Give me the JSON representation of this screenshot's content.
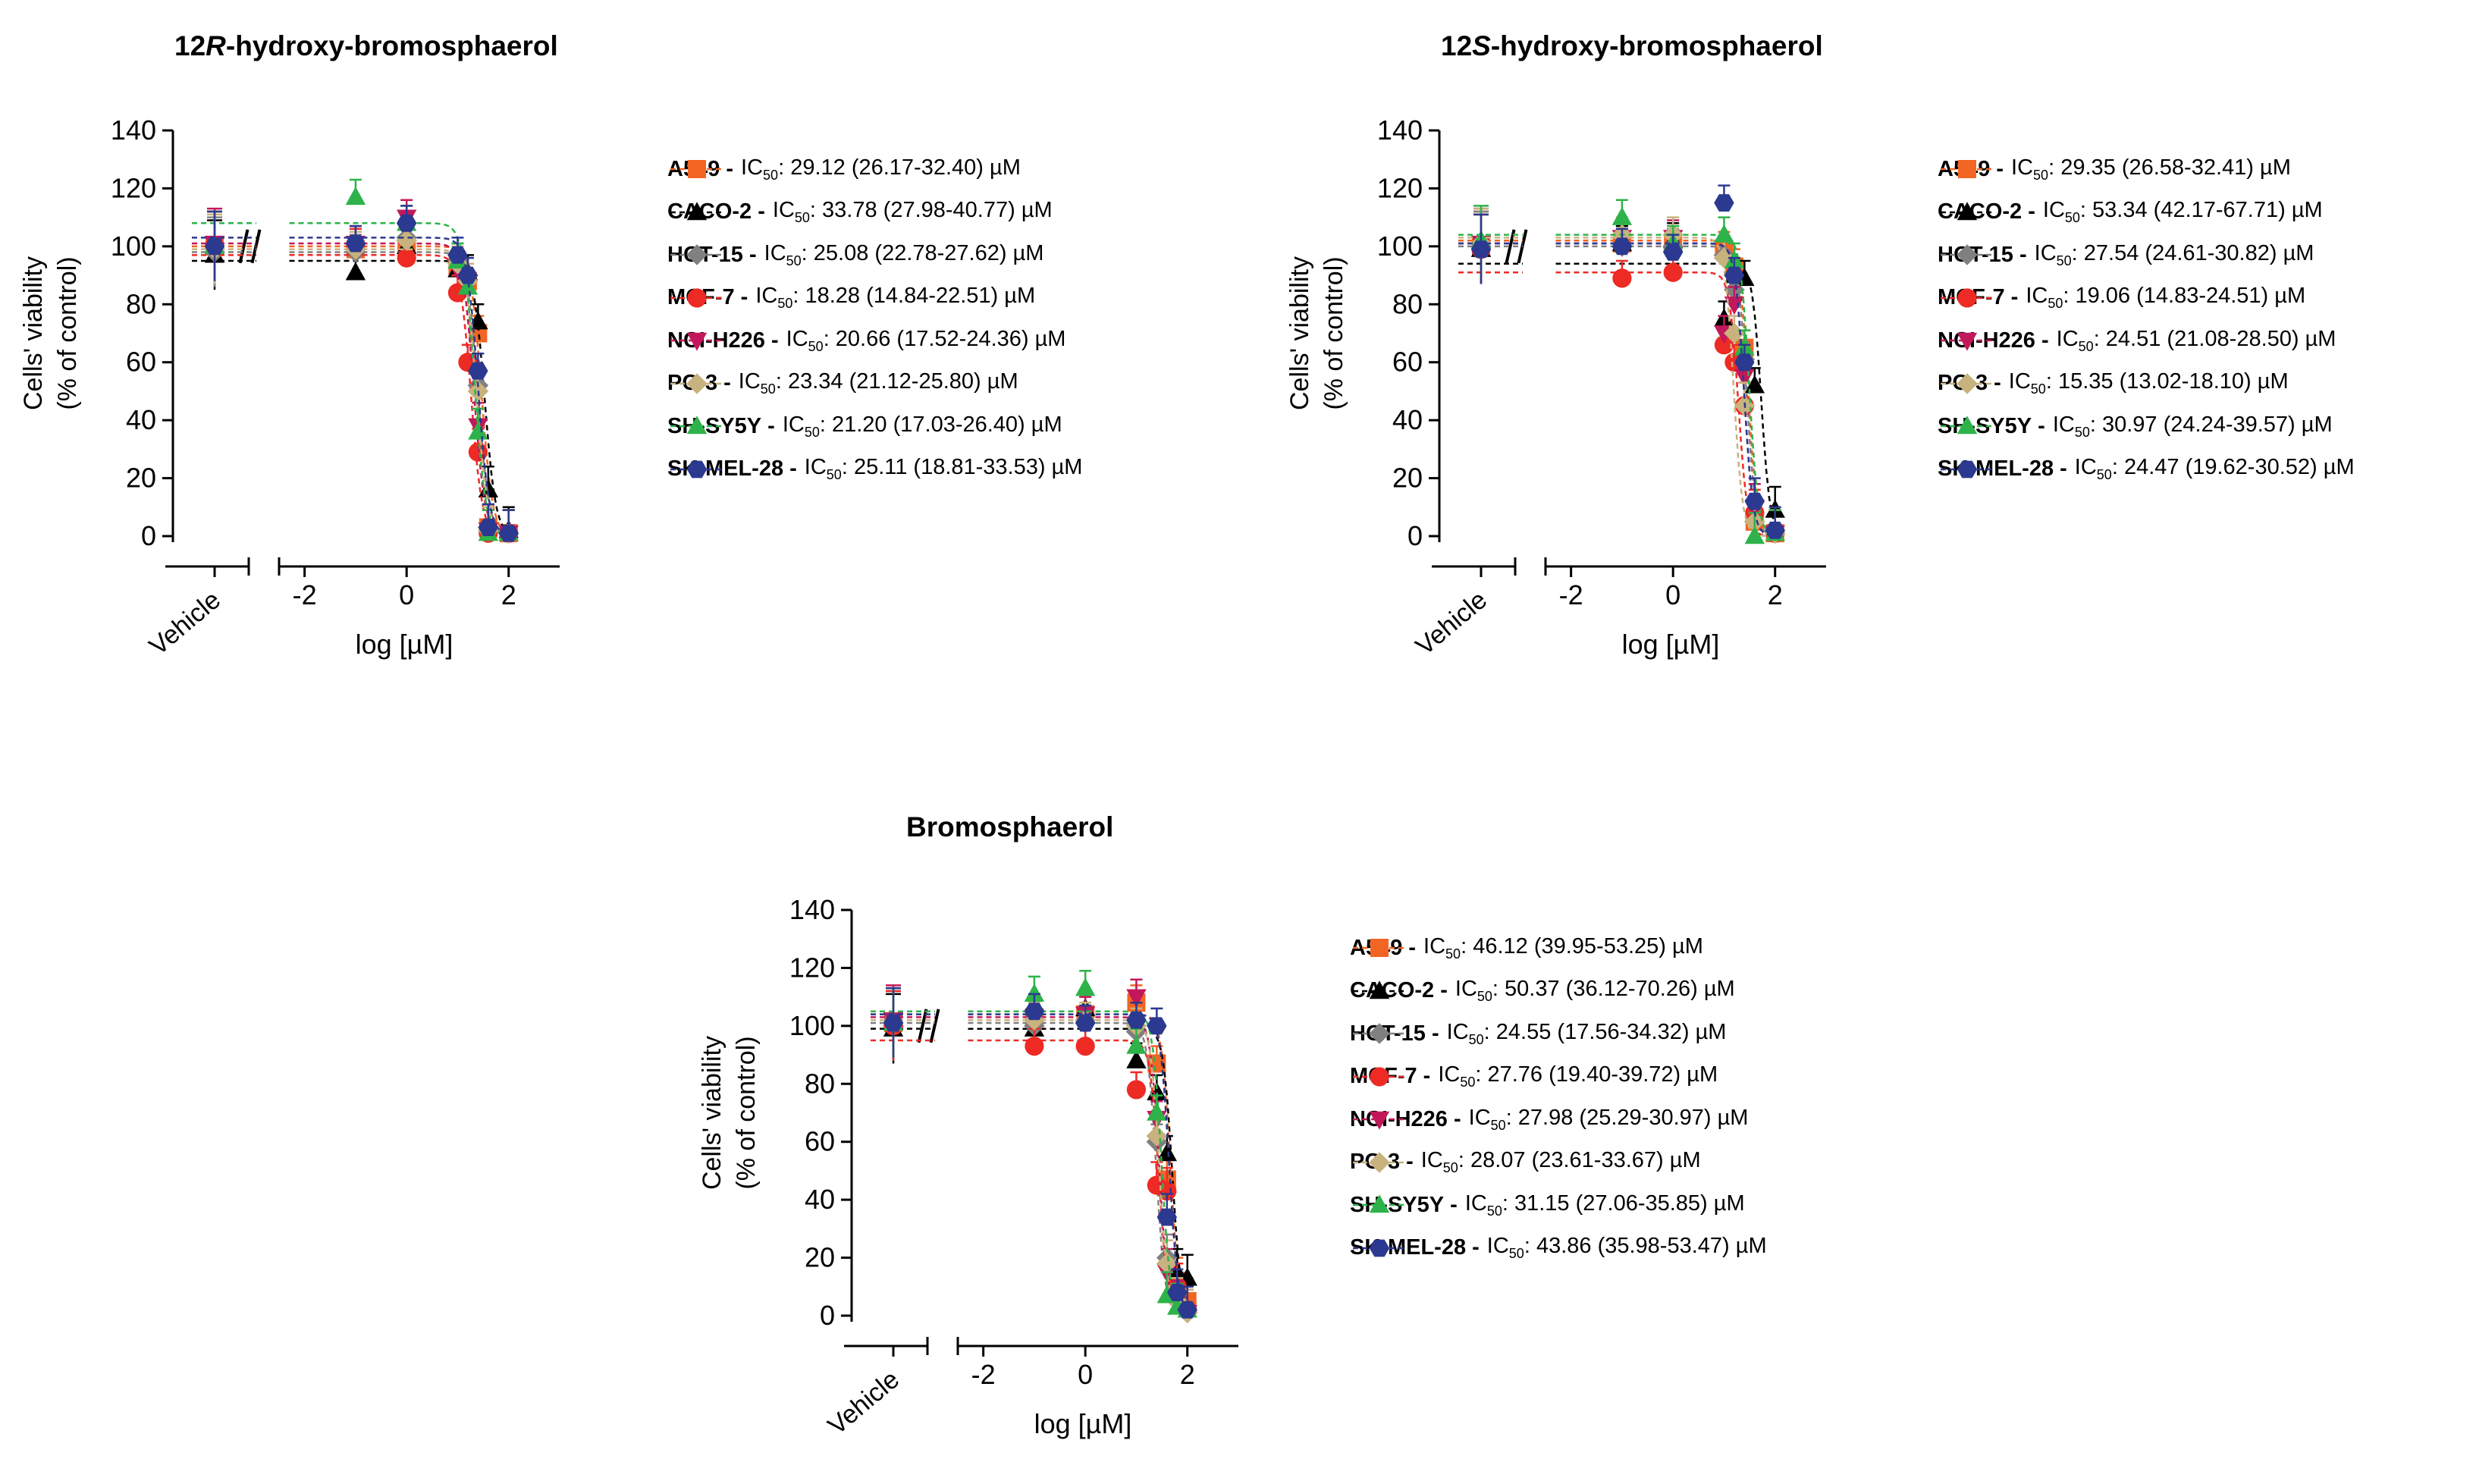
{
  "chart_data": [
    {
      "type": "line",
      "title": {
        "prefix": "12",
        "italic": "R",
        "suffix": "-hydroxy-bromosphaerol"
      },
      "ylabel_line1": "Cells' viability",
      "ylabel_line2": "(% of control)",
      "xlabel": "log [µM]",
      "vehicle_label": "Vehicle",
      "ylim": [
        0,
        140
      ],
      "xlim": [
        -2.5,
        3
      ],
      "yticks": [
        "0",
        "20",
        "40",
        "60",
        "80",
        "100",
        "120",
        "140"
      ],
      "xticks": [
        "-2",
        "0",
        "2"
      ],
      "ic50_label": "IC",
      "ic50_sub": "50",
      "series": [
        {
          "name": "A549",
          "ic50_text": ": 29.12 (26.17-32.40) µM",
          "color": "#F26522",
          "marker": "square",
          "top": 100,
          "ic50": 29.12,
          "hill": -4,
          "vehicle": 100,
          "points": [
            [
              -1,
              99
            ],
            [
              0,
              100
            ],
            [
              1,
              93
            ],
            [
              1.2,
              88
            ],
            [
              1.4,
              70
            ],
            [
              1.6,
              3
            ],
            [
              2,
              1
            ]
          ]
        },
        {
          "name": "CACO-2",
          "ic50_text": ": 33.78 (27.98-40.77) µM",
          "color": "#000000",
          "marker": "triangle",
          "top": 95,
          "ic50": 33.78,
          "hill": -4,
          "vehicle": 97,
          "points": [
            [
              -1,
              91
            ],
            [
              0,
              100
            ],
            [
              1,
              92
            ],
            [
              1.2,
              91
            ],
            [
              1.4,
              74
            ],
            [
              1.6,
              16
            ],
            [
              2,
              2
            ]
          ]
        },
        {
          "name": "HCT-15",
          "ic50_text": ": 25.08 (22.78-27.62) µM",
          "color": "#808080",
          "marker": "diamond",
          "top": 98,
          "ic50": 25.08,
          "hill": -4,
          "vehicle": 98,
          "points": [
            [
              -1,
              98
            ],
            [
              0,
              103
            ],
            [
              1,
              95
            ],
            [
              1.2,
              90
            ],
            [
              1.4,
              52
            ],
            [
              1.6,
              3
            ],
            [
              2,
              1
            ]
          ]
        },
        {
          "name": "MCF-7",
          "ic50_text": ": 18.28 (14.84-22.51) µM",
          "color": "#EE2A24",
          "marker": "circle",
          "top": 97,
          "ic50": 18.28,
          "hill": -4,
          "vehicle": 100,
          "points": [
            [
              -1,
              100
            ],
            [
              0,
              96
            ],
            [
              1,
              84
            ],
            [
              1.2,
              60
            ],
            [
              1.4,
              29
            ],
            [
              1.6,
              1
            ],
            [
              2,
              1
            ]
          ]
        },
        {
          "name": "NCI-H226",
          "ic50_text": ": 20.66 (17.52-24.36) µM",
          "color": "#C2185B",
          "marker": "triangle-down",
          "top": 101,
          "ic50": 20.66,
          "hill": -4,
          "vehicle": 101,
          "points": [
            [
              -1,
              101
            ],
            [
              0,
              110
            ],
            [
              1,
              92
            ],
            [
              1.2,
              86
            ],
            [
              1.4,
              38
            ],
            [
              1.6,
              2
            ],
            [
              2,
              1
            ]
          ]
        },
        {
          "name": "PC-3",
          "ic50_text": ": 23.34 (21.12-25.80) µM",
          "color": "#C8B27D",
          "marker": "diamond",
          "top": 99,
          "ic50": 23.34,
          "hill": -4,
          "vehicle": 99,
          "points": [
            [
              -1,
              99
            ],
            [
              0,
              102
            ],
            [
              1,
              94
            ],
            [
              1.2,
              88
            ],
            [
              1.4,
              50
            ],
            [
              1.6,
              2
            ],
            [
              2,
              1
            ]
          ]
        },
        {
          "name": "SH-SY5Y",
          "ic50_text": ": 21.20 (17.03-26.40) µM",
          "color": "#2DB34A",
          "marker": "triangle",
          "top": 108,
          "ic50": 21.2,
          "hill": -4,
          "vehicle": 100,
          "points": [
            [
              -1,
              117
            ],
            [
              0,
              108
            ],
            [
              1,
              95
            ],
            [
              1.2,
              86
            ],
            [
              1.4,
              36
            ],
            [
              1.6,
              1
            ],
            [
              2,
              1
            ]
          ]
        },
        {
          "name": "SK-MEL-28",
          "ic50_text": ": 25.11 (18.81-33.53) µM",
          "color": "#2B3990",
          "marker": "hexagon",
          "top": 103,
          "ic50": 25.11,
          "hill": -4,
          "vehicle": 100,
          "points": [
            [
              -1,
              101
            ],
            [
              0,
              108
            ],
            [
              1,
              97
            ],
            [
              1.2,
              90
            ],
            [
              1.4,
              57
            ],
            [
              1.6,
              3
            ],
            [
              2,
              1
            ]
          ]
        }
      ]
    },
    {
      "type": "line",
      "title": {
        "prefix": "12",
        "italic": "S",
        "suffix": "-hydroxy-bromosphaerol"
      },
      "ylabel_line1": "Cells' viability",
      "ylabel_line2": "(% of control)",
      "xlabel": "log [µM]",
      "vehicle_label": "Vehicle",
      "ylim": [
        0,
        140
      ],
      "xlim": [
        -2.5,
        3
      ],
      "yticks": [
        "0",
        "20",
        "40",
        "60",
        "80",
        "100",
        "120",
        "140"
      ],
      "xticks": [
        "-2",
        "0",
        "2"
      ],
      "ic50_label": "IC",
      "ic50_sub": "50",
      "series": [
        {
          "name": "A549",
          "ic50_text": ": 29.35 (26.58-32.41) µM",
          "color": "#F26522",
          "marker": "square",
          "top": 102,
          "ic50": 29.35,
          "hill": -5,
          "vehicle": 100,
          "points": [
            [
              -1,
              101
            ],
            [
              0,
              101
            ],
            [
              1,
              99
            ],
            [
              1.2,
              93
            ],
            [
              1.4,
              65
            ],
            [
              1.6,
              5
            ],
            [
              2,
              1
            ]
          ]
        },
        {
          "name": "CACO-2",
          "ic50_text": ": 53.34 (42.17-67.71) µM",
          "color": "#000000",
          "marker": "triangle",
          "top": 94,
          "ic50": 53.34,
          "hill": -5,
          "vehicle": 99,
          "points": [
            [
              -1,
              101
            ],
            [
              0,
              102
            ],
            [
              1,
              75
            ],
            [
              1.2,
              90
            ],
            [
              1.4,
              89
            ],
            [
              1.6,
              52
            ],
            [
              2,
              9
            ]
          ]
        },
        {
          "name": "HCT-15",
          "ic50_text": ": 27.54 (24.61-30.82) µM",
          "color": "#808080",
          "marker": "diamond",
          "top": 100,
          "ic50": 27.54,
          "hill": -5,
          "vehicle": 100,
          "points": [
            [
              -1,
              100
            ],
            [
              0,
              100
            ],
            [
              1,
              97
            ],
            [
              1.2,
              85
            ],
            [
              1.4,
              61
            ],
            [
              1.6,
              5
            ],
            [
              2,
              1
            ]
          ]
        },
        {
          "name": "MCF-7",
          "ic50_text": ": 19.06 (14.83-24.51) µM",
          "color": "#EE2A24",
          "marker": "circle",
          "top": 91,
          "ic50": 19.06,
          "hill": -5,
          "vehicle": 99,
          "points": [
            [
              -1,
              89
            ],
            [
              0,
              91
            ],
            [
              1,
              66
            ],
            [
              1.2,
              60
            ],
            [
              1.4,
              45
            ],
            [
              1.6,
              8
            ],
            [
              2,
              1
            ]
          ]
        },
        {
          "name": "NCI-H226",
          "ic50_text": ": 24.51 (21.08-28.50) µM",
          "color": "#C2185B",
          "marker": "triangle-down",
          "top": 101,
          "ic50": 24.51,
          "hill": -5,
          "vehicle": 101,
          "points": [
            [
              -1,
              103
            ],
            [
              0,
              103
            ],
            [
              1,
              70
            ],
            [
              1.2,
              80
            ],
            [
              1.4,
              55
            ],
            [
              1.6,
              10
            ],
            [
              2,
              1
            ]
          ]
        },
        {
          "name": "PC-3",
          "ic50_text": ": 15.35 (13.02-18.10) µM",
          "color": "#C8B27D",
          "marker": "diamond",
          "top": 103,
          "ic50": 15.35,
          "hill": -5,
          "vehicle": 101,
          "points": [
            [
              -1,
              104
            ],
            [
              0,
              104
            ],
            [
              1,
              96
            ],
            [
              1.2,
              70
            ],
            [
              1.4,
              45
            ],
            [
              1.6,
              5
            ],
            [
              2,
              1
            ]
          ]
        },
        {
          "name": "SH-SY5Y",
          "ic50_text": ": 30.97 (24.24-39.57) µM",
          "color": "#2DB34A",
          "marker": "triangle",
          "top": 104,
          "ic50": 30.97,
          "hill": -5,
          "vehicle": 102,
          "points": [
            [
              -1,
              110
            ],
            [
              0,
              101
            ],
            [
              1,
              104
            ],
            [
              1.2,
              95
            ],
            [
              1.4,
              65
            ],
            [
              1.6,
              0
            ],
            [
              2,
              1
            ]
          ]
        },
        {
          "name": "SK-MEL-28",
          "ic50_text": ": 24.47 (19.62-30.52) µM",
          "color": "#2B3990",
          "marker": "hexagon",
          "top": 101,
          "ic50": 24.47,
          "hill": -5,
          "vehicle": 99,
          "points": [
            [
              -1,
              100
            ],
            [
              0,
              98
            ],
            [
              1,
              115
            ],
            [
              1.2,
              90
            ],
            [
              1.4,
              60
            ],
            [
              1.6,
              12
            ],
            [
              2,
              2
            ]
          ]
        }
      ]
    },
    {
      "type": "line",
      "title": {
        "prefix": "Bromosphaerol",
        "italic": "",
        "suffix": ""
      },
      "ylabel_line1": "Cells' viability",
      "ylabel_line2": "(% of control)",
      "xlabel": "log [µM]",
      "vehicle_label": "Vehicle",
      "ylim": [
        0,
        140
      ],
      "xlim": [
        -2.5,
        3
      ],
      "yticks": [
        "0",
        "20",
        "40",
        "60",
        "80",
        "100",
        "120",
        "140"
      ],
      "xticks": [
        "-2",
        "0",
        "2"
      ],
      "ic50_label": "IC",
      "ic50_sub": "50",
      "series": [
        {
          "name": "A549",
          "ic50_text": ": 46.12 (39.95-53.25) µM",
          "color": "#F26522",
          "marker": "square",
          "top": 104,
          "ic50": 46.12,
          "hill": -5,
          "vehicle": 101,
          "points": [
            [
              -1,
              103
            ],
            [
              0,
              104
            ],
            [
              1,
              108
            ],
            [
              1.4,
              87
            ],
            [
              1.6,
              47
            ],
            [
              1.8,
              12
            ],
            [
              2,
              5
            ]
          ]
        },
        {
          "name": "CACO-2",
          "ic50_text": ": 50.37 (36.12-70.26) µM",
          "color": "#000000",
          "marker": "triangle",
          "top": 99,
          "ic50": 50.37,
          "hill": -5,
          "vehicle": 99,
          "points": [
            [
              -1,
              99
            ],
            [
              0,
              106
            ],
            [
              1,
              88
            ],
            [
              1.4,
              77
            ],
            [
              1.6,
              56
            ],
            [
              1.8,
              15
            ],
            [
              2,
              13
            ]
          ]
        },
        {
          "name": "HCT-15",
          "ic50_text": ": 24.55 (17.56-34.32) µM",
          "color": "#808080",
          "marker": "diamond",
          "top": 101,
          "ic50": 24.55,
          "hill": -5,
          "vehicle": 100,
          "points": [
            [
              -1,
              100
            ],
            [
              0,
              101
            ],
            [
              1,
              98
            ],
            [
              1.4,
              60
            ],
            [
              1.6,
              20
            ],
            [
              1.8,
              5
            ],
            [
              2,
              1
            ]
          ]
        },
        {
          "name": "MCF-7",
          "ic50_text": ": 27.76 (19.40-39.72) µM",
          "color": "#EE2A24",
          "marker": "circle",
          "top": 95,
          "ic50": 27.76,
          "hill": -5,
          "vehicle": 100,
          "points": [
            [
              -1,
              93
            ],
            [
              0,
              93
            ],
            [
              1,
              78
            ],
            [
              1.4,
              45
            ],
            [
              1.6,
              43
            ],
            [
              1.8,
              10
            ],
            [
              2,
              2
            ]
          ]
        },
        {
          "name": "NCI-H226",
          "ic50_text": ": 27.98 (25.29-30.97) µM",
          "color": "#C2185B",
          "marker": "triangle-down",
          "top": 103,
          "ic50": 27.98,
          "hill": -5,
          "vehicle": 102,
          "points": [
            [
              -1,
              103
            ],
            [
              0,
              104
            ],
            [
              1,
              110
            ],
            [
              1.4,
              68
            ],
            [
              1.6,
              15
            ],
            [
              1.8,
              4
            ],
            [
              2,
              1
            ]
          ]
        },
        {
          "name": "PC-3",
          "ic50_text": ": 28.07 (23.61-33.67) µM",
          "color": "#C8B27D",
          "marker": "diamond",
          "top": 102,
          "ic50": 28.07,
          "hill": -5,
          "vehicle": 101,
          "points": [
            [
              -1,
              102
            ],
            [
              0,
              102
            ],
            [
              1,
              100
            ],
            [
              1.4,
              62
            ],
            [
              1.6,
              18
            ],
            [
              1.8,
              5
            ],
            [
              2,
              1
            ]
          ]
        },
        {
          "name": "SH-SY5Y",
          "ic50_text": ": 31.15 (27.06-35.85) µM",
          "color": "#2DB34A",
          "marker": "triangle",
          "top": 105,
          "ic50": 31.15,
          "hill": -5,
          "vehicle": 101,
          "points": [
            [
              -1,
              111
            ],
            [
              0,
              113
            ],
            [
              1,
              93
            ],
            [
              1.4,
              70
            ],
            [
              1.6,
              7
            ],
            [
              1.8,
              3
            ],
            [
              2,
              2
            ]
          ]
        },
        {
          "name": "SK-MEL-28",
          "ic50_text": ": 43.86 (35.98-53.47) µM",
          "color": "#2B3990",
          "marker": "hexagon",
          "top": 104,
          "ic50": 43.86,
          "hill": -5,
          "vehicle": 101,
          "points": [
            [
              -1,
              105
            ],
            [
              0,
              101
            ],
            [
              1,
              102
            ],
            [
              1.4,
              100
            ],
            [
              1.6,
              34
            ],
            [
              1.8,
              8
            ],
            [
              2,
              2
            ]
          ]
        }
      ]
    }
  ]
}
